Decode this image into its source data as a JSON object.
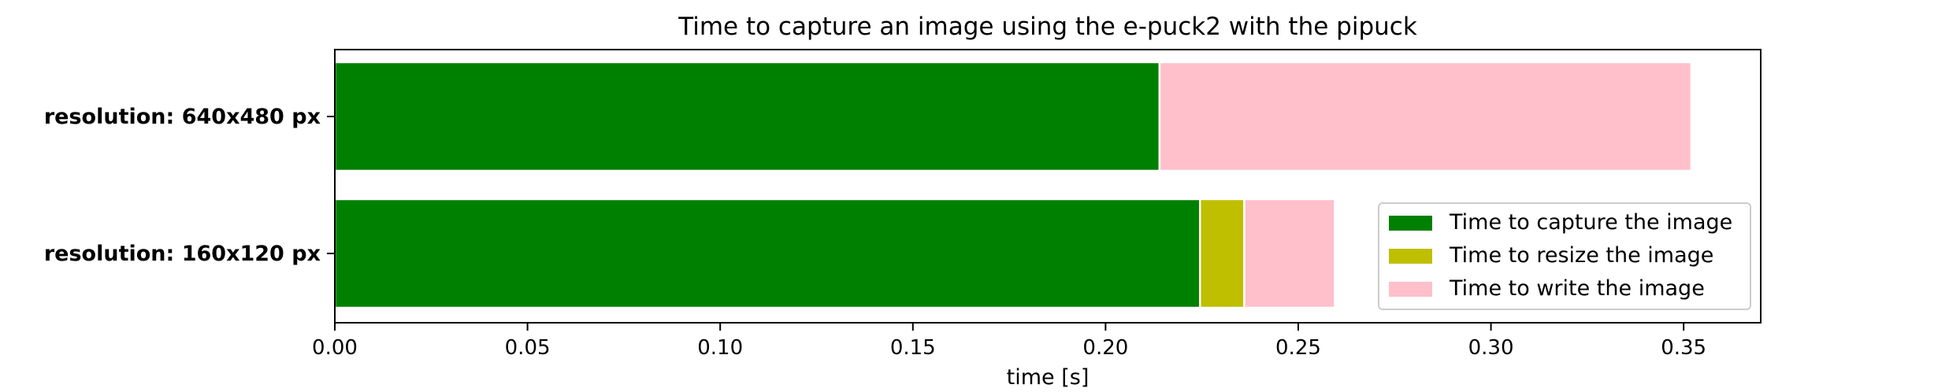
{
  "chart_data": {
    "type": "bar",
    "orientation": "horizontal",
    "stacked": true,
    "title": "Time to capture an image using the e-puck2 with the pipuck",
    "xlabel": "time [s]",
    "ylabel": "",
    "xlim": [
      0,
      0.37
    ],
    "xticks": [
      0.0,
      0.05,
      0.1,
      0.15,
      0.2,
      0.25,
      0.3,
      0.35
    ],
    "xtick_labels": [
      "0.00",
      "0.05",
      "0.10",
      "0.15",
      "0.20",
      "0.25",
      "0.30",
      "0.35"
    ],
    "categories": [
      "resolution: 640x480 px",
      "resolution: 160x120 px"
    ],
    "series": [
      {
        "name": "Time to capture the image",
        "color": "#008000",
        "values": [
          0.214,
          0.2245
        ]
      },
      {
        "name": "Time to resize the image",
        "color": "#bfbf00",
        "values": [
          0.0,
          0.0115
        ]
      },
      {
        "name": "Time to write the image",
        "color": "#ffc0cb",
        "values": [
          0.138,
          0.0235
        ]
      }
    ],
    "grid": false,
    "legend": "lower right"
  }
}
